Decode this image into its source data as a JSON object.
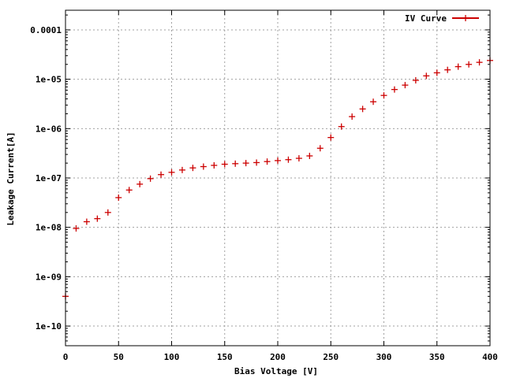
{
  "chart_data": {
    "type": "scatter",
    "xlabel": "Bias Voltage [V]",
    "ylabel": "Leakage Current[A]",
    "x_scale": "linear",
    "y_scale": "log",
    "xlim": [
      0,
      400
    ],
    "ylim": [
      4e-11,
      0.00025
    ],
    "grid": true,
    "legend_position": "top-right",
    "x_ticks": [
      0,
      50,
      100,
      150,
      200,
      250,
      300,
      350,
      400
    ],
    "x_tick_labels": [
      "0",
      "50",
      "100",
      "150",
      "200",
      "250",
      "300",
      "350",
      "400"
    ],
    "y_ticks": [
      1e-10,
      1e-09,
      1e-08,
      1e-07,
      1e-06,
      1e-05,
      0.0001
    ],
    "y_tick_labels": [
      "1e-10",
      "1e-09",
      "1e-08",
      "1e-07",
      "1e-06",
      "1e-05",
      "0.0001"
    ],
    "colors": {
      "series": "#cc0000",
      "grid": "#a0a0a0",
      "axis": "#000000"
    },
    "series": [
      {
        "name": "IV Curve",
        "marker": "plus",
        "points": [
          [
            0,
            4e-10
          ],
          [
            10,
            9.5e-09
          ],
          [
            20,
            1.3e-08
          ],
          [
            30,
            1.5e-08
          ],
          [
            40,
            2e-08
          ],
          [
            50,
            4e-08
          ],
          [
            60,
            5.7e-08
          ],
          [
            70,
            7.5e-08
          ],
          [
            80,
            9.7e-08
          ],
          [
            90,
            1.17e-07
          ],
          [
            100,
            1.3e-07
          ],
          [
            110,
            1.45e-07
          ],
          [
            120,
            1.6e-07
          ],
          [
            130,
            1.7e-07
          ],
          [
            140,
            1.8e-07
          ],
          [
            150,
            1.9e-07
          ],
          [
            160,
            1.95e-07
          ],
          [
            170,
            2e-07
          ],
          [
            180,
            2.05e-07
          ],
          [
            190,
            2.15e-07
          ],
          [
            200,
            2.25e-07
          ],
          [
            210,
            2.35e-07
          ],
          [
            220,
            2.5e-07
          ],
          [
            230,
            2.8e-07
          ],
          [
            240,
            4e-07
          ],
          [
            250,
            6.6e-07
          ],
          [
            260,
            1.1e-06
          ],
          [
            270,
            1.75e-06
          ],
          [
            280,
            2.5e-06
          ],
          [
            290,
            3.5e-06
          ],
          [
            300,
            4.7e-06
          ],
          [
            310,
            6.2e-06
          ],
          [
            320,
            7.6e-06
          ],
          [
            330,
            9.5e-06
          ],
          [
            340,
            1.17e-05
          ],
          [
            350,
            1.35e-05
          ],
          [
            360,
            1.55e-05
          ],
          [
            370,
            1.8e-05
          ],
          [
            380,
            2e-05
          ],
          [
            390,
            2.2e-05
          ],
          [
            400,
            2.4e-05
          ]
        ]
      }
    ]
  }
}
